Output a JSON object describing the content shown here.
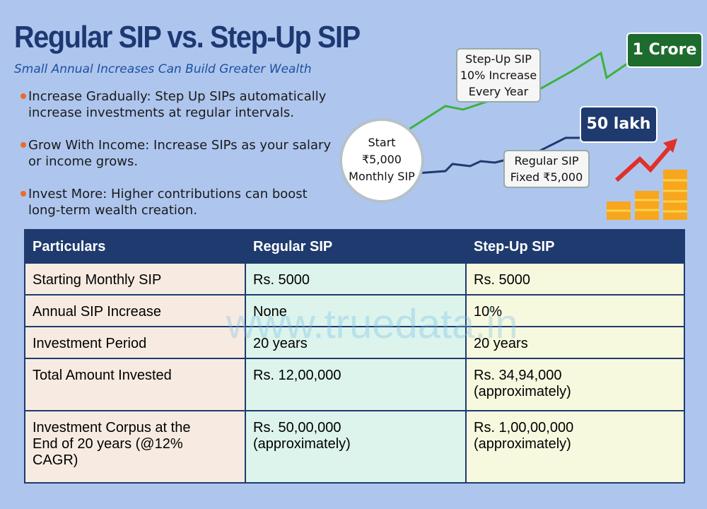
{
  "header": {
    "title": "Regular SIP vs. Step-Up SIP",
    "subtitle": "Small Annual Increases Can Build Greater Wealth"
  },
  "bullets": [
    "Increase Gradually: Step Up SIPs automatically\nincrease investments at regular intervals.",
    "Grow With Income: Increase SIPs as your salary\nor income grows.",
    "Invest More: Higher contributions can boost\nlong-term wealth creation."
  ],
  "diagram": {
    "start": "Start\n₹5,000\nMonthly SIP",
    "stepup_callout": "Step-Up SIP\n10% Increase\nEvery Year",
    "regular_callout": "Regular SIP\nFixed ₹5,000",
    "stepup_result": "1 Crore",
    "regular_result": "50 lakh"
  },
  "watermark": "www.truedata.in",
  "table": {
    "header": [
      "Particulars",
      "Regular SIP",
      "Step-Up SIP"
    ],
    "rows": [
      [
        "Starting Monthly SIP",
        "Rs. 5000",
        "Rs. 5000"
      ],
      [
        "Annual SIP Increase",
        "None",
        "10%"
      ],
      [
        "Investment Period",
        "20 years",
        "20 years"
      ],
      [
        "Total Amount Invested",
        "Rs. 12,00,000",
        "Rs. 34,94,000\n(approximately)"
      ],
      [
        "Investment Corpus at the\nEnd of 20 years (@12%\nCAGR)",
        "Rs. 50,00,000\n(approximately)",
        "Rs. 1,00,00,000\n(approximately)"
      ]
    ]
  }
}
